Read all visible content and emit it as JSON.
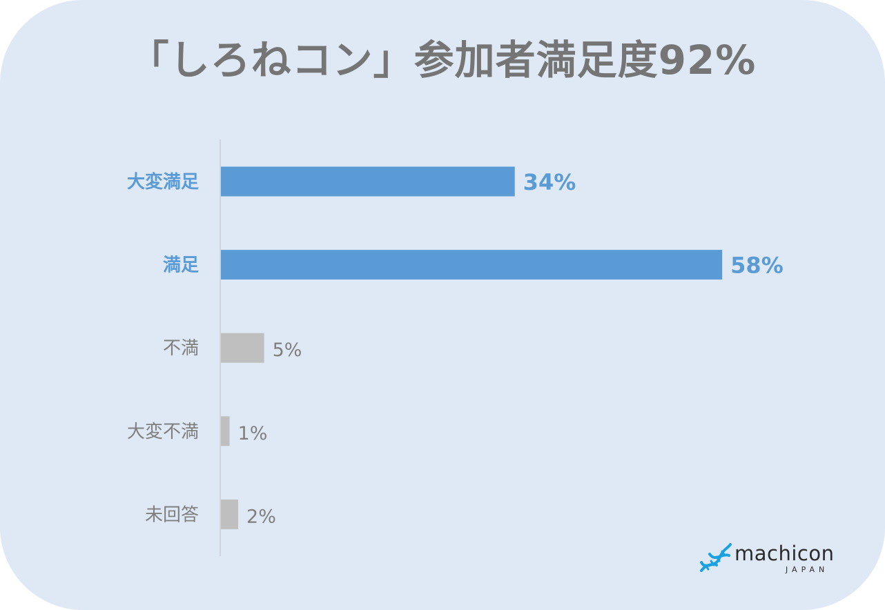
{
  "title": "「しろねコン」参加者満足度92%",
  "chart_data": {
    "type": "bar",
    "orientation": "horizontal",
    "categories": [
      "大変満足",
      "満足",
      "不満",
      "大変不満",
      "未回答"
    ],
    "values": [
      34,
      58,
      5,
      1,
      2
    ],
    "value_labels": [
      "34%",
      "58%",
      "5%",
      "1%",
      "2%"
    ],
    "highlight": [
      true,
      true,
      false,
      false,
      false
    ],
    "unit": "%",
    "xlim": [
      0,
      100
    ],
    "grid": false,
    "colors": {
      "highlight": "#5b9bd5",
      "normal": "#bfbfbf",
      "label_normal": "#7f7f7f",
      "axis": "#d0d5dc"
    }
  },
  "logo": {
    "name": "machicon",
    "sub": "JAPAN",
    "icon": "dna-helix-icon",
    "color": "#1ba1e2"
  }
}
